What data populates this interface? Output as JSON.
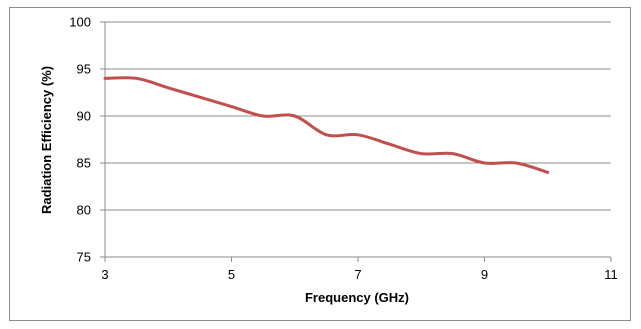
{
  "chart_data": {
    "type": "line",
    "title": "",
    "xlabel": "Frequency (GHz)",
    "ylabel": "Radiation Efficiency (%)",
    "xlim": [
      3,
      11
    ],
    "ylim": [
      75,
      100
    ],
    "xticks": [
      3,
      5,
      7,
      9,
      11
    ],
    "yticks": [
      75,
      80,
      85,
      90,
      95,
      100
    ],
    "grid": {
      "horizontal": true,
      "vertical": false
    },
    "legend": "none",
    "series": [
      {
        "color": "#c0504d",
        "x": [
          3,
          3.5,
          4,
          4.5,
          5,
          5.5,
          6,
          6.5,
          7,
          7.5,
          8,
          8.5,
          9,
          9.5,
          10
        ],
        "y": [
          94,
          94,
          93,
          92,
          91,
          90,
          90,
          88,
          88,
          87,
          86,
          86,
          85,
          85,
          84
        ]
      }
    ]
  }
}
